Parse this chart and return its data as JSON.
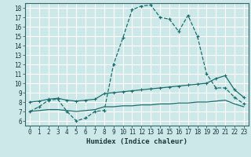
{
  "xlabel": "Humidex (Indice chaleur)",
  "bg_color": "#cde8e8",
  "grid_color": "#b0d4d4",
  "line_color": "#1a6e6e",
  "xlim": [
    -0.5,
    23.5
  ],
  "ylim": [
    5.5,
    18.5
  ],
  "yticks": [
    6,
    7,
    8,
    9,
    10,
    11,
    12,
    13,
    14,
    15,
    16,
    17,
    18
  ],
  "xticks": [
    0,
    1,
    2,
    3,
    4,
    5,
    6,
    7,
    8,
    9,
    10,
    11,
    12,
    13,
    14,
    15,
    16,
    17,
    18,
    19,
    20,
    21,
    22,
    23
  ],
  "curve1_x": [
    0,
    1,
    2,
    3,
    4,
    5,
    6,
    7,
    8,
    9,
    10,
    11,
    12,
    13,
    14,
    15,
    16,
    17,
    18,
    19,
    20,
    21,
    22,
    23
  ],
  "curve1_y": [
    7.0,
    7.5,
    8.2,
    8.3,
    7.0,
    6.0,
    6.3,
    7.0,
    7.1,
    12.0,
    14.8,
    17.8,
    18.2,
    18.3,
    17.0,
    16.8,
    15.5,
    17.2,
    15.0,
    11.0,
    9.5,
    9.5,
    8.5,
    7.8
  ],
  "curve2_x": [
    0,
    1,
    2,
    3,
    4,
    5,
    6,
    7,
    8,
    9,
    10,
    11,
    12,
    13,
    14,
    15,
    16,
    17,
    18,
    19,
    20,
    21,
    22,
    23
  ],
  "curve2_y": [
    8.0,
    8.1,
    8.3,
    8.4,
    8.2,
    8.1,
    8.2,
    8.3,
    8.9,
    9.0,
    9.1,
    9.2,
    9.3,
    9.4,
    9.5,
    9.6,
    9.7,
    9.8,
    9.9,
    10.0,
    10.5,
    10.8,
    9.3,
    8.5
  ],
  "curve3_x": [
    0,
    1,
    2,
    3,
    4,
    5,
    6,
    7,
    8,
    9,
    10,
    11,
    12,
    13,
    14,
    15,
    16,
    17,
    18,
    19,
    20,
    21,
    22,
    23
  ],
  "curve3_y": [
    7.0,
    7.1,
    7.2,
    7.2,
    7.1,
    7.0,
    7.1,
    7.2,
    7.5,
    7.5,
    7.6,
    7.6,
    7.7,
    7.7,
    7.8,
    7.8,
    7.9,
    7.9,
    8.0,
    8.0,
    8.1,
    8.2,
    7.8,
    7.5
  ]
}
